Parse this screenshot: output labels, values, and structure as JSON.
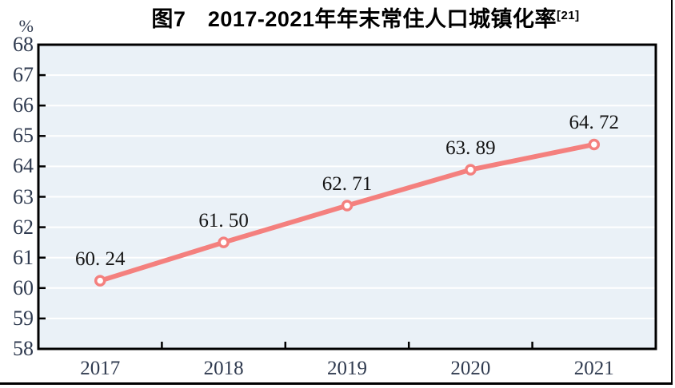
{
  "figure": {
    "title": "图7　2017-2021年年末常住人口城镇化率",
    "title_superscript": "[21]",
    "unit_label": "%"
  },
  "chart_data": {
    "type": "line",
    "title": "图7 2017-2021年年末常住人口城镇化率[21]",
    "categories": [
      "2017",
      "2018",
      "2019",
      "2020",
      "2021"
    ],
    "values": [
      60.24,
      61.5,
      62.71,
      63.89,
      64.72
    ],
    "data_labels": [
      "60. 24",
      "61. 50",
      "62. 71",
      "63. 89",
      "64. 72"
    ],
    "xlabel": "",
    "ylabel": "%",
    "ylim": [
      58,
      68
    ],
    "ytick_interval": 1,
    "yticks": [
      58,
      59,
      60,
      61,
      62,
      63,
      64,
      65,
      66,
      67,
      68
    ],
    "grid": "horizontal",
    "legend_position": "none"
  },
  "colors": {
    "line": "#f4807e",
    "marker_fill": "#ffffff",
    "plot_background": "#eaf1f7",
    "gridline": "#ffffff",
    "axis_border": "#000000",
    "tick_label": "#2f3a4f",
    "data_label": "#151515",
    "title": "#000000"
  }
}
